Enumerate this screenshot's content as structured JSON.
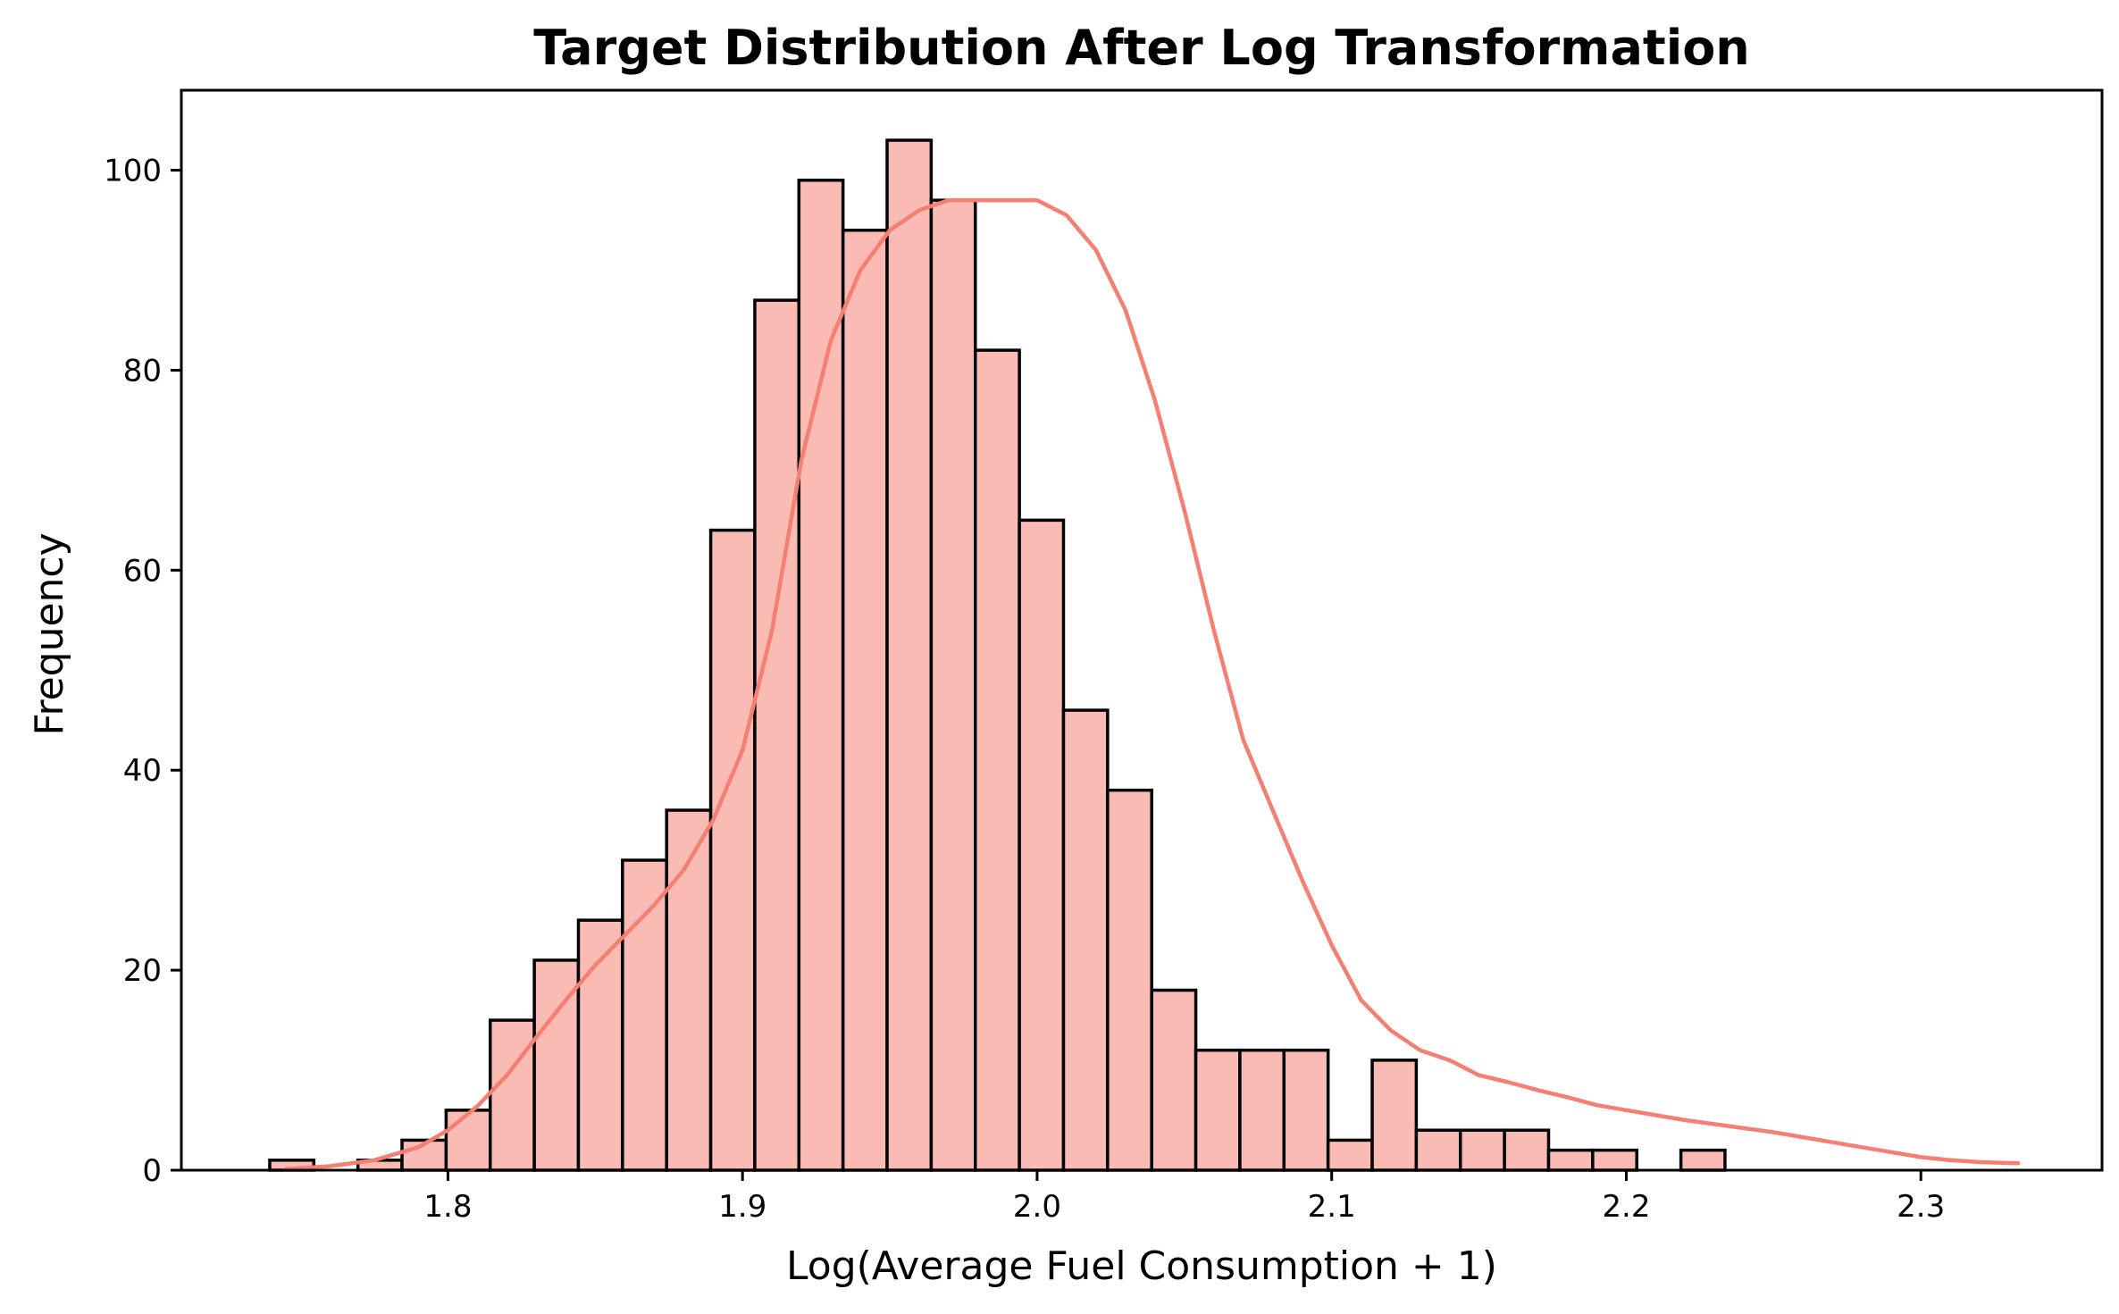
{
  "chart_data": {
    "type": "bar",
    "title": "Target Distribution After Log Transformation",
    "xlabel": "Log(Average Fuel Consumption + 1)",
    "ylabel": "Frequency",
    "xlim": [
      1.7095,
      2.3615
    ],
    "ylim": [
      0,
      108
    ],
    "grid": false,
    "xticks": [
      1.8,
      1.9,
      2.0,
      2.1,
      2.2,
      2.3
    ],
    "xtick_labels": [
      "1.8",
      "1.9",
      "2.0",
      "2.1",
      "2.2",
      "2.3"
    ],
    "yticks": [
      0,
      20,
      40,
      60,
      80,
      100
    ],
    "ytick_labels": [
      "0",
      "20",
      "40",
      "60",
      "80",
      "100"
    ],
    "bin_start": 1.7395,
    "bin_width": 0.01497,
    "values": [
      1,
      0,
      1,
      3,
      6,
      15,
      21,
      25,
      31,
      36,
      64,
      87,
      99,
      94,
      103,
      97,
      82,
      65,
      46,
      38,
      18,
      12,
      12,
      12,
      3,
      11,
      4,
      4,
      4,
      2,
      2,
      0,
      2
    ],
    "colors": {
      "bar_fill": "#fabbb4",
      "bar_edge": "#000000",
      "kde_line": "#f47f72"
    },
    "kde": {
      "label": "",
      "x": [
        1.745,
        1.76,
        1.775,
        1.79,
        1.8,
        1.81,
        1.82,
        1.83,
        1.84,
        1.85,
        1.86,
        1.87,
        1.88,
        1.89,
        1.9,
        1.91,
        1.92,
        1.93,
        1.94,
        1.95,
        1.96,
        1.97,
        1.98,
        1.99,
        2.0,
        2.01,
        2.02,
        2.03,
        2.04,
        2.05,
        2.06,
        2.07,
        2.08,
        2.09,
        2.1,
        2.11,
        2.12,
        2.13,
        2.14,
        2.15,
        2.16,
        2.17,
        2.18,
        2.19,
        2.2,
        2.21,
        2.22,
        2.23,
        2.24,
        2.25,
        2.26,
        2.27,
        2.28,
        2.29,
        2.3,
        2.31,
        2.32,
        2.333
      ],
      "y": [
        0.1,
        0.4,
        1.0,
        2.3,
        4.0,
        6.4,
        9.5,
        13.3,
        17.0,
        20.5,
        23.5,
        26.5,
        30.0,
        35.0,
        42.0,
        54.0,
        71.0,
        83.0,
        90.0,
        94.0,
        96.0,
        97.0,
        97.0,
        97.0,
        97.0,
        95.5,
        92.0,
        86.0,
        77.0,
        66.0,
        54.0,
        43.0,
        36.0,
        29.0,
        22.5,
        17.0,
        14.0,
        12.0,
        11.0,
        9.5,
        8.8,
        8.0,
        7.3,
        6.5,
        6.0,
        5.5,
        5.0,
        4.6,
        4.2,
        3.8,
        3.3,
        2.8,
        2.3,
        1.8,
        1.3,
        1.0,
        0.8,
        0.7
      ]
    }
  }
}
